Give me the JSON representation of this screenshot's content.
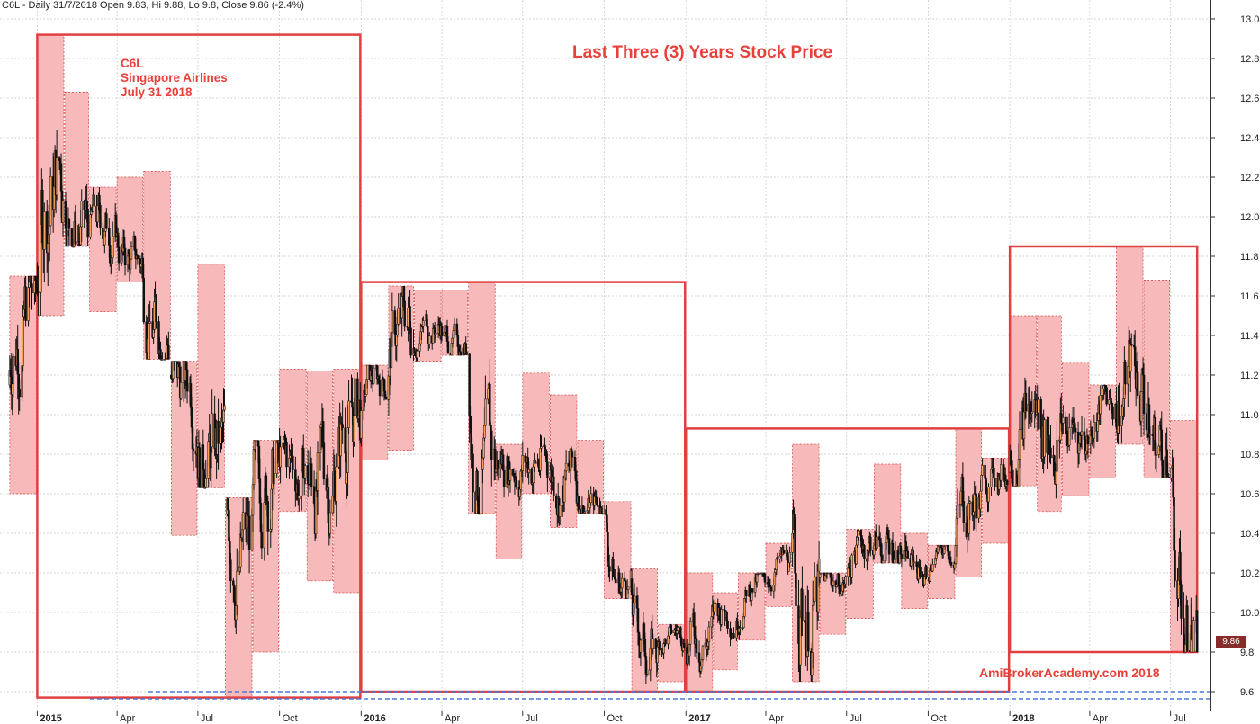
{
  "header": "C6L - Daily 31/7/2018 Open 9.83, Hi 9.88, Lo 9.8, Close 9.86 (-2.4%)",
  "annotation": [
    "C6L",
    "Singapore Airlines",
    "July 31 2018"
  ],
  "watermark": "AmiBrokerAcademy.com  2018",
  "last_price_label": "9.86",
  "colors": {
    "annotation": "#e8403a",
    "box_border": "#e04040",
    "monthly_fill": "#f7b9b9",
    "candle": "#111111",
    "support_line": "#4a78d8",
    "grid": "#c8c8c8",
    "last_label_bg": "#8a2a2a"
  },
  "chart_data": {
    "type": "candlestick",
    "title": "Last Three (3) Years Stock Price",
    "ylim": [
      9.55,
      13.05
    ],
    "y_ticks": [
      "9.6",
      "9.8",
      "10.0",
      "10.2",
      "10.4",
      "10.6",
      "10.8",
      "11.0",
      "11.2",
      "11.4",
      "11.6",
      "11.8",
      "12.0",
      "12.2",
      "12.4",
      "12.6",
      "12.8",
      "13.0"
    ],
    "x_labels": [
      "2015",
      "Apr",
      "Jul",
      "Oct",
      "2016",
      "Apr",
      "Jul",
      "Oct",
      "2017",
      "Apr",
      "Jul",
      "Oct",
      "2018",
      "Apr",
      "Jul"
    ],
    "x_range": [
      "2014-11-20",
      "2018-08-15"
    ],
    "monthly_ranges": [
      {
        "start": "2014-12-01",
        "end": "2014-12-31",
        "low": 10.6,
        "high": 11.7
      },
      {
        "start": "2015-01-01",
        "end": "2015-01-31",
        "low": 11.5,
        "high": 12.92
      },
      {
        "start": "2015-02-01",
        "end": "2015-02-28",
        "low": 11.85,
        "high": 12.63
      },
      {
        "start": "2015-03-01",
        "end": "2015-03-31",
        "low": 11.52,
        "high": 12.15
      },
      {
        "start": "2015-04-01",
        "end": "2015-04-30",
        "low": 11.67,
        "high": 12.2
      },
      {
        "start": "2015-05-01",
        "end": "2015-05-31",
        "low": 11.28,
        "high": 12.23
      },
      {
        "start": "2015-06-01",
        "end": "2015-06-30",
        "low": 10.39,
        "high": 11.27
      },
      {
        "start": "2015-07-01",
        "end": "2015-07-31",
        "low": 10.63,
        "high": 11.76
      },
      {
        "start": "2015-08-01",
        "end": "2015-08-31",
        "low": 9.57,
        "high": 10.58
      },
      {
        "start": "2015-09-01",
        "end": "2015-09-30",
        "low": 9.8,
        "high": 10.87
      },
      {
        "start": "2015-10-01",
        "end": "2015-10-31",
        "low": 10.51,
        "high": 11.23
      },
      {
        "start": "2015-11-01",
        "end": "2015-11-30",
        "low": 10.16,
        "high": 11.22
      },
      {
        "start": "2015-12-01",
        "end": "2015-12-31",
        "low": 10.1,
        "high": 11.23
      },
      {
        "start": "2016-01-01",
        "end": "2016-01-31",
        "low": 10.77,
        "high": 11.25
      },
      {
        "start": "2016-02-01",
        "end": "2016-02-29",
        "low": 10.82,
        "high": 11.65
      },
      {
        "start": "2016-03-01",
        "end": "2016-03-31",
        "low": 11.27,
        "high": 11.63
      },
      {
        "start": "2016-04-01",
        "end": "2016-04-30",
        "low": 11.3,
        "high": 11.63
      },
      {
        "start": "2016-05-01",
        "end": "2016-05-31",
        "low": 10.5,
        "high": 11.67
      },
      {
        "start": "2016-06-01",
        "end": "2016-06-30",
        "low": 10.27,
        "high": 10.85
      },
      {
        "start": "2016-07-01",
        "end": "2016-07-31",
        "low": 10.6,
        "high": 11.21
      },
      {
        "start": "2016-08-01",
        "end": "2016-08-31",
        "low": 10.43,
        "high": 11.1
      },
      {
        "start": "2016-09-01",
        "end": "2016-09-30",
        "low": 10.5,
        "high": 10.87
      },
      {
        "start": "2016-10-01",
        "end": "2016-10-31",
        "low": 10.07,
        "high": 10.56
      },
      {
        "start": "2016-11-01",
        "end": "2016-11-30",
        "low": 9.6,
        "high": 10.22
      },
      {
        "start": "2016-12-01",
        "end": "2016-12-31",
        "low": 9.65,
        "high": 9.94
      },
      {
        "start": "2017-01-01",
        "end": "2017-01-31",
        "low": 9.6,
        "high": 10.2
      },
      {
        "start": "2017-02-01",
        "end": "2017-02-28",
        "low": 9.71,
        "high": 10.1
      },
      {
        "start": "2017-03-01",
        "end": "2017-03-31",
        "low": 9.86,
        "high": 10.2
      },
      {
        "start": "2017-04-01",
        "end": "2017-04-30",
        "low": 10.03,
        "high": 10.35
      },
      {
        "start": "2017-05-01",
        "end": "2017-05-31",
        "low": 9.65,
        "high": 10.85
      },
      {
        "start": "2017-06-01",
        "end": "2017-06-30",
        "low": 9.89,
        "high": 10.2
      },
      {
        "start": "2017-07-01",
        "end": "2017-07-31",
        "low": 9.97,
        "high": 10.42
      },
      {
        "start": "2017-08-01",
        "end": "2017-08-31",
        "low": 10.25,
        "high": 10.75
      },
      {
        "start": "2017-09-01",
        "end": "2017-09-30",
        "low": 10.02,
        "high": 10.4
      },
      {
        "start": "2017-10-01",
        "end": "2017-10-31",
        "low": 10.07,
        "high": 10.34
      },
      {
        "start": "2017-11-01",
        "end": "2017-11-30",
        "low": 10.18,
        "high": 10.93
      },
      {
        "start": "2017-12-01",
        "end": "2017-12-31",
        "low": 10.35,
        "high": 10.78
      },
      {
        "start": "2018-01-01",
        "end": "2018-01-31",
        "low": 10.64,
        "high": 11.5
      },
      {
        "start": "2018-02-01",
        "end": "2018-02-28",
        "low": 10.51,
        "high": 11.5
      },
      {
        "start": "2018-03-01",
        "end": "2018-03-31",
        "low": 10.59,
        "high": 11.26
      },
      {
        "start": "2018-04-01",
        "end": "2018-04-30",
        "low": 10.68,
        "high": 11.15
      },
      {
        "start": "2018-05-01",
        "end": "2018-05-31",
        "low": 10.85,
        "high": 11.85
      },
      {
        "start": "2018-06-01",
        "end": "2018-06-30",
        "low": 10.68,
        "high": 11.68
      },
      {
        "start": "2018-07-01",
        "end": "2018-07-31",
        "low": 9.8,
        "high": 10.97
      }
    ],
    "yearly_boxes": [
      {
        "start": "2015-01-01",
        "end": "2015-12-31",
        "low": 9.57,
        "high": 12.92
      },
      {
        "start": "2016-01-01",
        "end": "2016-12-31",
        "low": 9.6,
        "high": 11.67
      },
      {
        "start": "2017-01-01",
        "end": "2017-12-31",
        "low": 9.6,
        "high": 10.93
      },
      {
        "start": "2018-01-01",
        "end": "2018-07-31",
        "low": 9.8,
        "high": 11.85
      }
    ],
    "support_level": 9.6,
    "last_close": 9.86
  }
}
